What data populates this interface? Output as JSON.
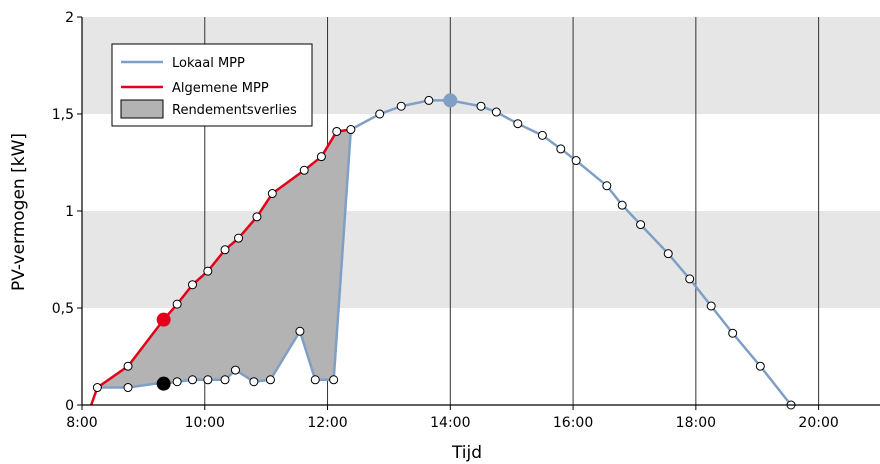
{
  "chart_data": {
    "type": "line",
    "xlabel": "Tijd",
    "ylabel": "PV-vermogen [kW]",
    "xlim": [
      8,
      21
    ],
    "ylim": [
      0,
      2
    ],
    "x_ticks": [
      {
        "value": 8,
        "label": "8:00"
      },
      {
        "value": 10,
        "label": "10:00"
      },
      {
        "value": 12,
        "label": "12:00"
      },
      {
        "value": 14,
        "label": "14:00"
      },
      {
        "value": 16,
        "label": "16:00"
      },
      {
        "value": 18,
        "label": "18:00"
      },
      {
        "value": 20,
        "label": "20:00"
      }
    ],
    "y_ticks": [
      {
        "value": 0,
        "label": "0"
      },
      {
        "value": 0.5,
        "label": "0,5"
      },
      {
        "value": 1,
        "label": "1"
      },
      {
        "value": 1.5,
        "label": "1,5"
      },
      {
        "value": 2,
        "label": "2"
      }
    ],
    "grid": "vertical lines at hour ticks; alternating grey horizontal bands",
    "legend_position": "top-left",
    "legend": [
      "Lokaal MPP",
      "Algemene MPP",
      "Rendementsverlies"
    ],
    "series": [
      {
        "name": "Lokaal MPP",
        "color": "#7f9fc4",
        "points": [
          [
            8.25,
            0.09
          ],
          [
            8.75,
            0.09
          ],
          [
            9.2,
            0.11
          ],
          [
            9.33,
            0.11
          ],
          [
            9.55,
            0.12
          ],
          [
            9.8,
            0.13
          ],
          [
            10.05,
            0.13
          ],
          [
            10.33,
            0.13
          ],
          [
            10.5,
            0.18
          ],
          [
            10.8,
            0.12
          ],
          [
            11.07,
            0.13
          ],
          [
            11.55,
            0.38
          ],
          [
            11.8,
            0.13
          ],
          [
            12.0,
            0.13
          ],
          [
            12.1,
            0.13
          ],
          [
            12.38,
            1.42
          ],
          [
            12.85,
            1.5
          ],
          [
            13.2,
            1.54
          ],
          [
            13.65,
            1.57
          ],
          [
            14.0,
            1.57
          ],
          [
            14.5,
            1.54
          ],
          [
            14.75,
            1.51
          ],
          [
            15.1,
            1.45
          ],
          [
            15.5,
            1.39
          ],
          [
            15.8,
            1.32
          ],
          [
            16.05,
            1.26
          ],
          [
            16.55,
            1.13
          ],
          [
            16.8,
            1.03
          ],
          [
            17.1,
            0.93
          ],
          [
            17.55,
            0.78
          ],
          [
            17.9,
            0.65
          ],
          [
            18.25,
            0.51
          ],
          [
            18.6,
            0.37
          ],
          [
            19.05,
            0.2
          ],
          [
            19.55,
            0.0
          ]
        ],
        "markers": [
          [
            8.25,
            0.09
          ],
          [
            8.75,
            0.09
          ],
          [
            9.55,
            0.12
          ],
          [
            9.8,
            0.13
          ],
          [
            10.05,
            0.13
          ],
          [
            10.33,
            0.13
          ],
          [
            10.5,
            0.18
          ],
          [
            10.8,
            0.12
          ],
          [
            11.07,
            0.13
          ],
          [
            11.55,
            0.38
          ],
          [
            11.8,
            0.13
          ],
          [
            12.1,
            0.13
          ],
          [
            12.85,
            1.5
          ],
          [
            13.2,
            1.54
          ],
          [
            13.65,
            1.57
          ],
          [
            14.5,
            1.54
          ],
          [
            14.75,
            1.51
          ],
          [
            15.1,
            1.45
          ],
          [
            15.5,
            1.39
          ],
          [
            15.8,
            1.32
          ],
          [
            16.05,
            1.26
          ],
          [
            16.55,
            1.13
          ],
          [
            16.8,
            1.03
          ],
          [
            17.1,
            0.93
          ],
          [
            17.55,
            0.78
          ],
          [
            17.9,
            0.65
          ],
          [
            18.25,
            0.51
          ],
          [
            18.6,
            0.37
          ],
          [
            19.05,
            0.2
          ],
          [
            19.55,
            0.0
          ]
        ],
        "highlight": [
          14.0,
          1.57
        ]
      },
      {
        "name": "Algemene MPP",
        "color": "#e2001a",
        "points": [
          [
            8.15,
            0.0
          ],
          [
            8.25,
            0.09
          ],
          [
            8.75,
            0.2
          ],
          [
            9.33,
            0.44
          ],
          [
            9.55,
            0.52
          ],
          [
            9.8,
            0.62
          ],
          [
            10.05,
            0.69
          ],
          [
            10.33,
            0.8
          ],
          [
            10.55,
            0.86
          ],
          [
            10.85,
            0.97
          ],
          [
            11.1,
            1.09
          ],
          [
            11.62,
            1.21
          ],
          [
            11.9,
            1.28
          ],
          [
            12.15,
            1.41
          ],
          [
            12.38,
            1.42
          ]
        ],
        "markers": [
          [
            8.75,
            0.2
          ],
          [
            9.55,
            0.52
          ],
          [
            9.8,
            0.62
          ],
          [
            10.05,
            0.69
          ],
          [
            10.33,
            0.8
          ],
          [
            10.55,
            0.86
          ],
          [
            10.85,
            0.97
          ],
          [
            11.1,
            1.09
          ],
          [
            11.62,
            1.21
          ],
          [
            11.9,
            1.28
          ],
          [
            12.15,
            1.41
          ],
          [
            12.38,
            1.42
          ]
        ],
        "highlight": [
          9.33,
          0.44
        ]
      }
    ],
    "black_point": [
      9.33,
      0.11
    ],
    "loss_area_color": "#b3b3b3"
  }
}
